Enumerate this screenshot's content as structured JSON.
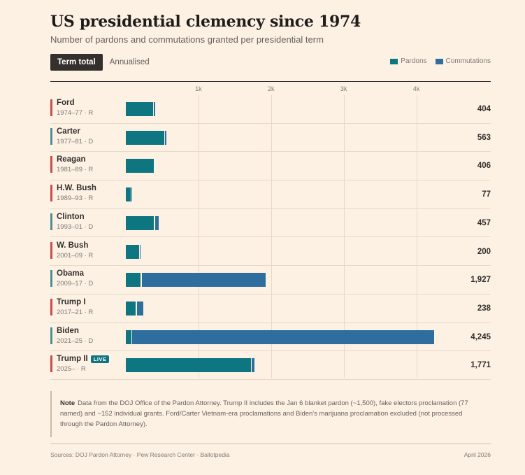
{
  "header": {
    "title": "US presidential clemency since 1974",
    "subtitle": "Number of pardons and commutations granted per presidential term"
  },
  "toggle": {
    "term_total": "Term total",
    "annualised": "Annualised"
  },
  "colors": {
    "pardons": "#0d7680",
    "commutations": "#2e6e9e",
    "republican": "#cc4b4b",
    "democrat": "#4e8e94"
  },
  "note": {
    "label": "Note",
    "text": "Data from the DOJ Office of the Pardon Attorney. Trump II includes the Jan 6 blanket pardon (~1,500), fake electors proclamation (77 named) and ~152 individual grants. Ford/Carter Vietnam-era proclamations and Biden's marijuana proclamation excluded (not processed through the Pardon Attorney)."
  },
  "footer": {
    "sources": "Sources: DOJ Pardon Attorney · Pew Research Center · Ballotpedia",
    "date": "April 2026"
  },
  "chart_data": {
    "type": "bar",
    "orientation": "horizontal",
    "stacked": true,
    "xlim": [
      0,
      4245
    ],
    "ticks": [
      {
        "value": 1000,
        "label": "1k"
      },
      {
        "value": 2000,
        "label": "2k"
      },
      {
        "value": 3000,
        "label": "3k"
      },
      {
        "value": 4000,
        "label": "4k"
      }
    ],
    "legend": [
      {
        "name": "Pardons",
        "key": "pardons"
      },
      {
        "name": "Commutations",
        "key": "commutations"
      }
    ],
    "rows": [
      {
        "name": "Ford",
        "term": "1974–77 · R",
        "party": "R",
        "pardons": 382,
        "commutations": 22,
        "total": "404",
        "live": ""
      },
      {
        "name": "Carter",
        "term": "1977–81 · D",
        "party": "D",
        "pardons": 534,
        "commutations": 29,
        "total": "563",
        "live": ""
      },
      {
        "name": "Reagan",
        "term": "1981–89 · R",
        "party": "R",
        "pardons": 393,
        "commutations": 13,
        "total": "406",
        "live": ""
      },
      {
        "name": "H.W. Bush",
        "term": "1989–93 · R",
        "party": "R",
        "pardons": 74,
        "commutations": 3,
        "total": "77",
        "live": ""
      },
      {
        "name": "Clinton",
        "term": "1993–01 · D",
        "party": "D",
        "pardons": 396,
        "commutations": 61,
        "total": "457",
        "live": ""
      },
      {
        "name": "W. Bush",
        "term": "2001–09 · R",
        "party": "R",
        "pardons": 189,
        "commutations": 11,
        "total": "200",
        "live": ""
      },
      {
        "name": "Obama",
        "term": "2009–17 · D",
        "party": "D",
        "pardons": 212,
        "commutations": 1715,
        "total": "1,927",
        "live": ""
      },
      {
        "name": "Trump I",
        "term": "2017–21 · R",
        "party": "R",
        "pardons": 144,
        "commutations": 94,
        "total": "238",
        "live": ""
      },
      {
        "name": "Biden",
        "term": "2021–25 · D",
        "party": "D",
        "pardons": 80,
        "commutations": 4165,
        "total": "4,245",
        "live": ""
      },
      {
        "name": "Trump II",
        "term": "2025– · R",
        "party": "R",
        "pardons": 1729,
        "commutations": 42,
        "total": "1,771",
        "live": "LIVE"
      }
    ]
  }
}
